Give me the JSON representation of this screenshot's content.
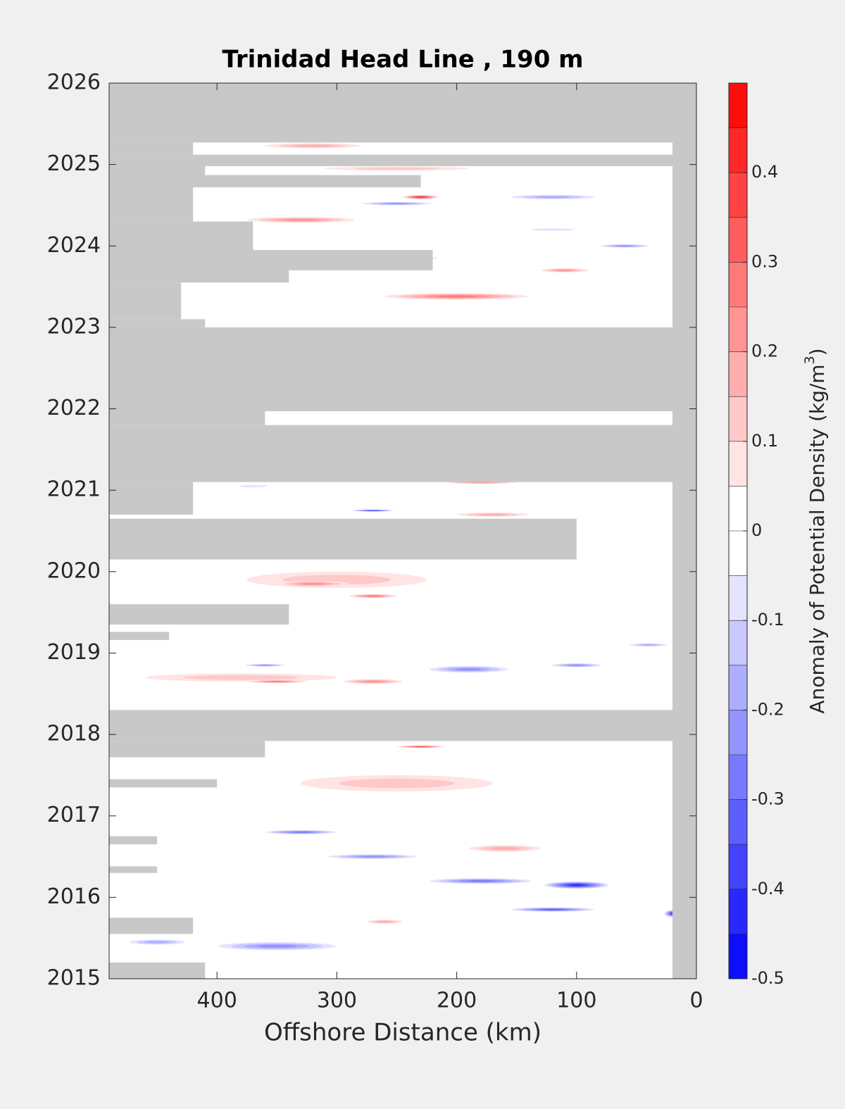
{
  "chart_data": {
    "type": "contour",
    "title": "Trinidad Head Line , 190 m",
    "xlabel": "Offshore Distance (km)",
    "xlim": [
      490,
      0
    ],
    "xticks": [
      400,
      300,
      200,
      100,
      0
    ],
    "ylim": [
      2015,
      2026
    ],
    "yticks": [
      2015,
      2016,
      2017,
      2018,
      2019,
      2020,
      2021,
      2022,
      2023,
      2024,
      2025,
      2026
    ],
    "colorbar": {
      "label": [
        "Anomaly of Potential Density (kg/m",
        "3",
        ")"
      ],
      "clim": [
        -0.5,
        0.5
      ],
      "nlevels": 20,
      "ticks": [
        -0.5,
        -0.4,
        -0.3,
        -0.2,
        -0.1,
        0,
        0.1,
        0.2,
        0.3,
        0.4
      ],
      "neg_color": "#0000ff",
      "mid_color": "#ffffff",
      "pos_color": "#ff0000"
    },
    "missing_color": "#c8c8c8",
    "missing": [
      [
        20,
        0,
        2015,
        2026
      ],
      [
        490,
        0,
        2025.27,
        2026
      ],
      [
        490,
        420,
        2025.12,
        2025.27
      ],
      [
        490,
        0,
        2024.98,
        2025.12
      ],
      [
        490,
        410,
        2024.72,
        2024.98
      ],
      [
        490,
        230,
        2024.72,
        2024.87
      ],
      [
        490,
        420,
        2024.3,
        2024.72
      ],
      [
        490,
        370,
        2023.95,
        2024.3
      ],
      [
        490,
        220,
        2023.7,
        2023.95
      ],
      [
        490,
        340,
        2023.55,
        2023.7
      ],
      [
        490,
        430,
        2023.1,
        2023.55
      ],
      [
        490,
        410,
        2023.0,
        2023.1
      ],
      [
        490,
        0,
        2021.97,
        2023.0
      ],
      [
        490,
        360,
        2021.8,
        2021.97
      ],
      [
        490,
        0,
        2021.1,
        2021.8
      ],
      [
        490,
        420,
        2020.7,
        2021.1
      ],
      [
        490,
        100,
        2020.15,
        2020.65
      ],
      [
        490,
        340,
        2019.35,
        2019.6
      ],
      [
        490,
        440,
        2019.16,
        2019.26
      ],
      [
        490,
        0,
        2017.92,
        2018.3
      ],
      [
        490,
        360,
        2017.72,
        2017.92
      ],
      [
        490,
        400,
        2017.35,
        2017.45
      ],
      [
        490,
        450,
        2016.65,
        2016.75
      ],
      [
        490,
        450,
        2016.3,
        2016.38
      ],
      [
        490,
        420,
        2015.55,
        2015.75
      ],
      [
        490,
        410,
        2015.0,
        2015.2
      ]
    ],
    "field": [
      [
        300,
        2019.9,
        0.1,
        150,
        0.2
      ],
      [
        380,
        2018.7,
        0.1,
        160,
        0.1
      ],
      [
        250,
        2017.4,
        0.1,
        160,
        0.2
      ],
      [
        250,
        2024.95,
        0.1,
        120,
        0.05
      ],
      [
        320,
        2025.23,
        0.15,
        80,
        0.06
      ],
      [
        230,
        2024.6,
        0.4,
        30,
        0.05
      ],
      [
        330,
        2024.32,
        0.2,
        90,
        0.07
      ],
      [
        110,
        2023.7,
        0.2,
        40,
        0.05
      ],
      [
        200,
        2023.38,
        0.25,
        120,
        0.08
      ],
      [
        180,
        2021.1,
        0.2,
        60,
        0.05
      ],
      [
        170,
        2020.7,
        0.15,
        60,
        0.05
      ],
      [
        320,
        2019.85,
        0.2,
        60,
        0.07
      ],
      [
        270,
        2019.7,
        0.25,
        40,
        0.05
      ],
      [
        350,
        2018.65,
        0.25,
        50,
        0.04
      ],
      [
        270,
        2018.65,
        0.2,
        50,
        0.06
      ],
      [
        230,
        2017.85,
        0.35,
        40,
        0.03
      ],
      [
        160,
        2016.6,
        0.15,
        60,
        0.08
      ],
      [
        260,
        2015.7,
        0.15,
        30,
        0.05
      ],
      [
        250,
        2024.52,
        -0.25,
        70,
        0.05
      ],
      [
        120,
        2024.6,
        -0.2,
        90,
        0.07
      ],
      [
        60,
        2024.0,
        -0.25,
        50,
        0.05
      ],
      [
        240,
        2023.85,
        -0.25,
        60,
        0.04
      ],
      [
        120,
        2024.2,
        -0.1,
        60,
        0.05
      ],
      [
        270,
        2020.75,
        -0.4,
        40,
        0.03
      ],
      [
        370,
        2021.05,
        -0.1,
        40,
        0.05
      ],
      [
        190,
        2018.8,
        -0.25,
        80,
        0.1
      ],
      [
        100,
        2018.85,
        -0.25,
        50,
        0.06
      ],
      [
        40,
        2019.1,
        -0.2,
        40,
        0.05
      ],
      [
        360,
        2018.85,
        -0.25,
        40,
        0.04
      ],
      [
        330,
        2016.8,
        -0.3,
        70,
        0.06
      ],
      [
        270,
        2016.5,
        -0.25,
        90,
        0.07
      ],
      [
        100,
        2016.15,
        -0.45,
        60,
        0.1
      ],
      [
        180,
        2016.2,
        -0.3,
        100,
        0.08
      ],
      [
        120,
        2015.85,
        -0.35,
        80,
        0.06
      ],
      [
        20,
        2015.8,
        -0.4,
        15,
        0.1
      ],
      [
        350,
        2015.4,
        -0.25,
        120,
        0.12
      ],
      [
        450,
        2015.45,
        -0.2,
        60,
        0.08
      ]
    ]
  }
}
